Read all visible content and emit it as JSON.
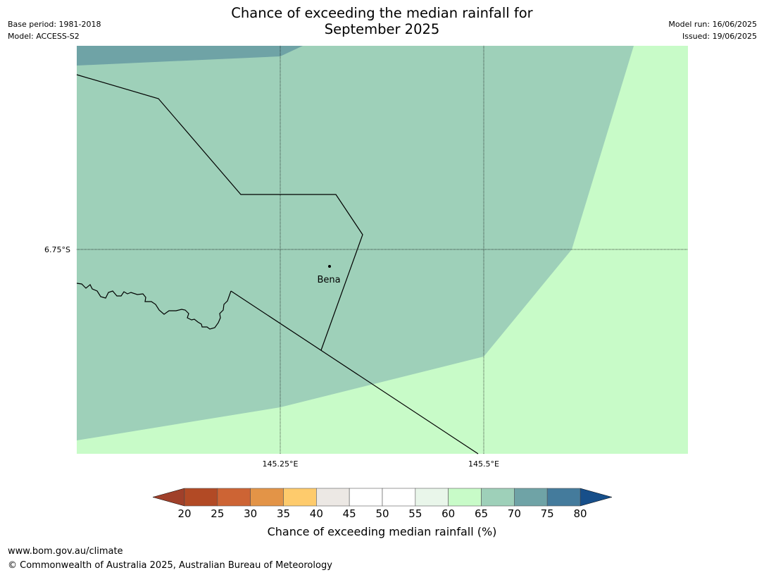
{
  "title_line1": "Chance of exceeding the median rainfall for",
  "title_line2": "September 2025",
  "meta_left": [
    "Base period: 1981-2018",
    "Model: ACCESS-S2"
  ],
  "meta_right": [
    "Model run: 16/06/2025",
    "Issued: 19/06/2025"
  ],
  "map": {
    "lat_labels": [
      {
        "text": "6.75°S"
      }
    ],
    "lon_labels": [
      {
        "text": "145.25°E"
      },
      {
        "text": "145.5°E"
      }
    ],
    "places": [
      {
        "name": "Bena"
      }
    ],
    "region_colors": {
      "65-70": "#9ed0b9",
      "60-65": "#c8fbc8",
      "70-75": "#6fa3a6"
    }
  },
  "colorbar": {
    "title": "Chance of exceeding median rainfall (%)",
    "ticks": [
      "20",
      "25",
      "30",
      "35",
      "40",
      "45",
      "50",
      "55",
      "60",
      "65",
      "70",
      "75",
      "80"
    ],
    "under_color": "#a0402a",
    "over_color": "#174f8a",
    "bin_colors": [
      "#b24a25",
      "#cd6434",
      "#e39447",
      "#fecb6c",
      "#ece8e4",
      "#ffffff",
      "#ffffff",
      "#e9f6ea",
      "#c8fbc8",
      "#9ed0b9",
      "#6fa3a6",
      "#447b9c"
    ]
  },
  "footer": {
    "url": "www.bom.gov.au/climate",
    "copyright": "© Commonwealth of Australia 2025, Australian Bureau of Meteorology"
  }
}
